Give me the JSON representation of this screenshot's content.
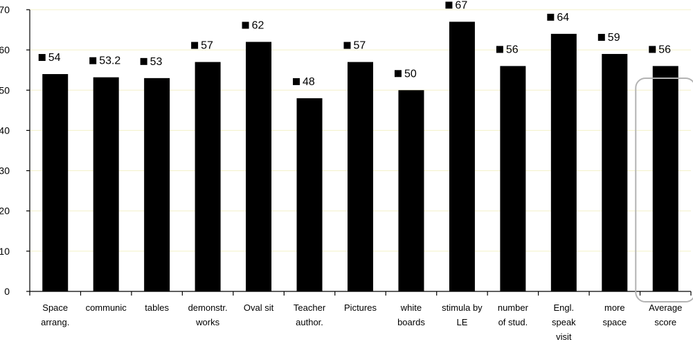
{
  "chart_data": {
    "type": "bar",
    "title": "",
    "xlabel": "",
    "ylabel": "",
    "ylim": [
      0,
      70
    ],
    "yticks": [
      0,
      10,
      20,
      30,
      40,
      50,
      60,
      70
    ],
    "grid": true,
    "categories": [
      [
        "Space",
        "arrang."
      ],
      [
        "communic"
      ],
      [
        "tables"
      ],
      [
        "demonstr.",
        "works"
      ],
      [
        "Oval sit"
      ],
      [
        "Teacher",
        "author."
      ],
      [
        "Pictures"
      ],
      [
        "white",
        "boards"
      ],
      [
        "stimula by",
        "LE"
      ],
      [
        "number",
        "of stud."
      ],
      [
        "Engl.",
        "speak",
        "visit"
      ],
      [
        "more",
        "space"
      ],
      [
        "Average",
        "score"
      ]
    ],
    "values": [
      54,
      53.2,
      53,
      57,
      62,
      48,
      57,
      50,
      67,
      56,
      64,
      59,
      56
    ],
    "data_labels": [
      "54",
      "53.2",
      "53",
      "57",
      "62",
      "48",
      "57",
      "50",
      "67",
      "56",
      "64",
      "59",
      "56"
    ],
    "highlighted_category": "Average score",
    "colors": {
      "bar": "#000000",
      "grid": "#f3f0c8",
      "highlight_box": "#b3b3b3"
    }
  }
}
